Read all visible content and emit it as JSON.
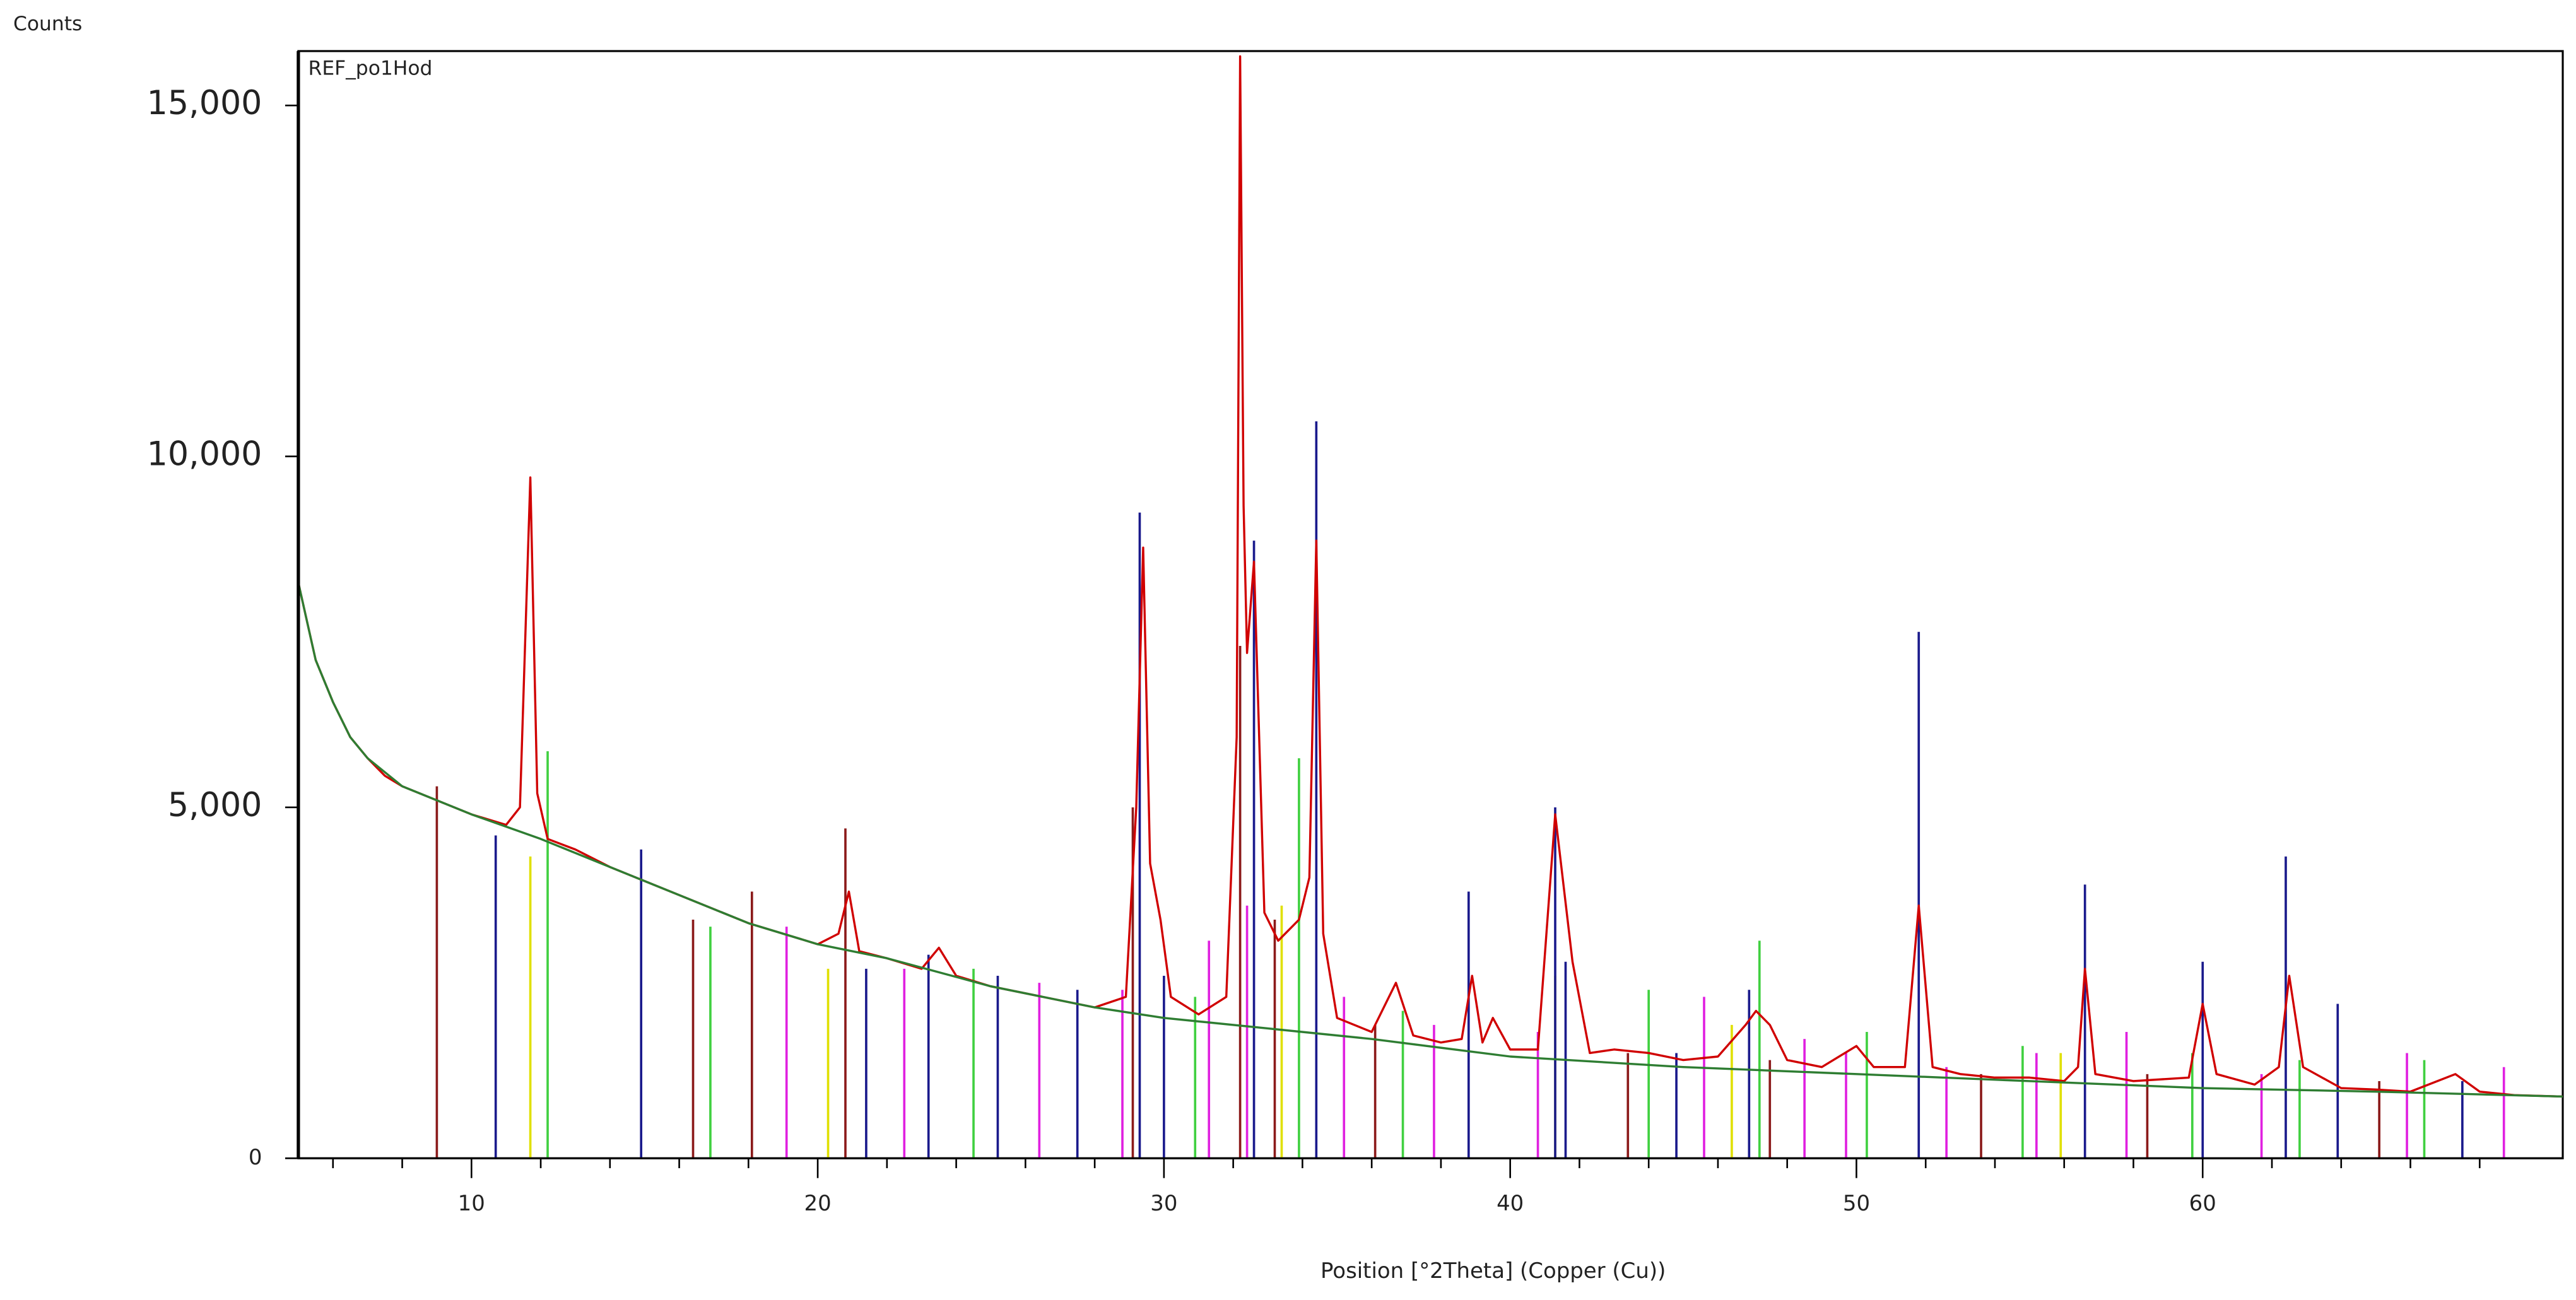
{
  "chart_data": {
    "type": "line",
    "y_label": "Counts",
    "x_label": "Position [°2Theta] (Copper (Cu))",
    "annotation": "REF_po1Hod",
    "xlim": [
      5,
      70.4
    ],
    "ylim": [
      0,
      15775
    ],
    "xticks": [
      10,
      20,
      30,
      40,
      50,
      60
    ],
    "xminor_ticks": [
      6,
      8,
      12,
      14,
      16,
      18,
      22,
      24,
      26,
      28,
      32,
      34,
      36,
      38,
      42,
      44,
      46,
      48,
      52,
      54,
      56,
      58,
      62,
      64,
      66,
      68
    ],
    "yticks": [
      0,
      {
        "value": 5000,
        "label": "5,000"
      },
      {
        "value": 10000,
        "label": "10,000"
      },
      {
        "value": 15000,
        "label": "15,000"
      }
    ],
    "series": [
      {
        "mark": "stick",
        "color": "#8b1a1a",
        "x": [
          9.0,
          16.4,
          18.1,
          20.8,
          29.1,
          32.2,
          33.2,
          36.1,
          43.4,
          47.5,
          53.6,
          58.4,
          65.1
        ],
        "values": [
          5300,
          3400,
          3800,
          4700,
          5000,
          7300,
          3400,
          1900,
          1500,
          1400,
          1200,
          1200,
          1100
        ]
      },
      {
        "mark": "stick",
        "color": "#e020e0",
        "x": [
          19.1,
          22.5,
          26.4,
          28.8,
          31.3,
          32.4,
          35.2,
          37.8,
          40.8,
          45.6,
          48.5,
          49.7,
          52.6,
          55.2,
          57.8,
          61.7,
          65.9,
          68.7
        ],
        "values": [
          3300,
          2700,
          2500,
          2400,
          3100,
          3600,
          2300,
          1900,
          1800,
          2300,
          1700,
          1500,
          1300,
          1500,
          1800,
          1200,
          1500,
          1300
        ]
      },
      {
        "mark": "stick",
        "color": "#40d040",
        "x": [
          12.2,
          16.9,
          24.5,
          30.9,
          33.9,
          36.9,
          44.0,
          47.2,
          50.3,
          54.8,
          59.7,
          62.8,
          66.4
        ],
        "values": [
          5800,
          3300,
          2700,
          2300,
          5700,
          2100,
          2400,
          3100,
          1800,
          1600,
          1500,
          1400,
          1400
        ]
      },
      {
        "mark": "stick",
        "color": "#e0e000",
        "x": [
          11.7,
          20.3,
          33.4,
          41.3,
          46.4,
          55.9
        ],
        "values": [
          4300,
          2700,
          3600,
          2600,
          1900,
          1500
        ]
      },
      {
        "mark": "stick",
        "color": "#1a1a8c",
        "x": [
          10.7,
          14.9,
          21.4,
          23.2,
          25.2,
          27.5,
          29.3,
          30.0,
          32.6,
          34.4,
          38.8,
          41.3,
          41.6,
          44.8,
          46.9,
          51.8,
          56.6,
          60.0,
          62.4,
          63.9,
          67.5
        ],
        "values": [
          4600,
          4400,
          2700,
          2900,
          2600,
          2400,
          9200,
          2600,
          8800,
          10500,
          3800,
          5000,
          2800,
          1500,
          2400,
          7500,
          3900,
          2800,
          4300,
          2200,
          1100
        ]
      },
      {
        "mark": "line",
        "color": "#d00000",
        "x": [
          5,
          5.5,
          6,
          6.5,
          7,
          7.5,
          8,
          9,
          10,
          11,
          11.4,
          11.7,
          11.9,
          12.2,
          13,
          14,
          15,
          16,
          17,
          18,
          19,
          20,
          20.6,
          20.9,
          21.2,
          22,
          23,
          23.5,
          24,
          25,
          26,
          27,
          28,
          28.9,
          29.2,
          29.4,
          29.6,
          29.9,
          30.2,
          31,
          31.8,
          32.1,
          32.2,
          32.3,
          32.4,
          32.6,
          32.9,
          33.3,
          33.9,
          34.2,
          34.4,
          34.6,
          35,
          36,
          36.7,
          37.2,
          38,
          38.6,
          38.9,
          39.2,
          39.5,
          40,
          40.8,
          41.3,
          41.8,
          42.3,
          43,
          44,
          45,
          46,
          46.8,
          47.1,
          47.5,
          48,
          49,
          50,
          50.5,
          51.4,
          51.8,
          52.2,
          53,
          54,
          55,
          56,
          56.4,
          56.6,
          56.9,
          58,
          59.6,
          60,
          60.4,
          61.5,
          62.2,
          62.5,
          62.9,
          64,
          65,
          66,
          67.3,
          68,
          69,
          70.4
        ],
        "values": [
          8200,
          7100,
          6500,
          6000,
          5700,
          5450,
          5300,
          5100,
          4900,
          4750,
          5000,
          9700,
          5200,
          4550,
          4400,
          4150,
          3950,
          3750,
          3550,
          3350,
          3200,
          3050,
          3200,
          3800,
          2950,
          2850,
          2700,
          3000,
          2600,
          2450,
          2350,
          2250,
          2150,
          2300,
          5000,
          8700,
          4200,
          3400,
          2300,
          2050,
          2300,
          6000,
          15700,
          9300,
          7200,
          8500,
          3500,
          3100,
          3400,
          4000,
          8800,
          3200,
          2000,
          1800,
          2500,
          1750,
          1650,
          1700,
          2600,
          1650,
          2000,
          1550,
          1550,
          4900,
          2800,
          1500,
          1550,
          1500,
          1400,
          1450,
          1900,
          2100,
          1900,
          1400,
          1300,
          1600,
          1300,
          1300,
          3600,
          1300,
          1200,
          1150,
          1150,
          1100,
          1300,
          2700,
          1200,
          1100,
          1150,
          2200,
          1200,
          1050,
          1300,
          2600,
          1300,
          1000,
          980,
          950,
          1200,
          950,
          900,
          880
        ]
      },
      {
        "mark": "line",
        "color": "#2e7d32",
        "x": [
          5,
          5.5,
          6,
          6.5,
          7,
          8,
          9,
          10,
          12,
          14,
          16,
          18,
          20,
          22,
          25,
          28,
          30,
          33,
          36,
          40,
          45,
          50,
          55,
          60,
          65,
          70.4
        ],
        "values": [
          8200,
          7100,
          6500,
          6000,
          5700,
          5300,
          5100,
          4900,
          4550,
          4150,
          3750,
          3350,
          3050,
          2850,
          2450,
          2150,
          2000,
          1850,
          1700,
          1450,
          1300,
          1200,
          1100,
          1000,
          950,
          880
        ]
      }
    ]
  }
}
